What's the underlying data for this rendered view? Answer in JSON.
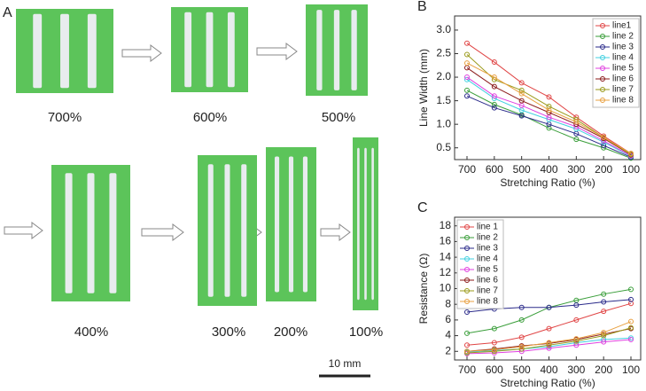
{
  "panel_label": "A",
  "photos": [
    {
      "label": "700%"
    },
    {
      "label": "600%"
    },
    {
      "label": "500%"
    },
    {
      "label": "400%"
    },
    {
      "label": "300%"
    },
    {
      "label": "200%"
    },
    {
      "label": "100%"
    }
  ],
  "scale_bar": "10 mm",
  "chart_data": [
    {
      "type": "line",
      "panel": "B",
      "xlabel": "Stretching Ratio (%)",
      "ylabel": "Line Width (mm)",
      "categories": [
        "700",
        "600",
        "500",
        "400",
        "300",
        "200",
        "100"
      ],
      "ylim": [
        0.25,
        3.3
      ],
      "yticks": [
        0.5,
        {
          "value": 1,
          "label": "1.0"
        },
        1.5,
        {
          "value": 2,
          "label": "2.0"
        },
        2.5,
        {
          "value": 3,
          "label": "3.0"
        }
      ],
      "legend": "upper right",
      "series": [
        {
          "name": "line1",
          "color": "#e04545",
          "values": [
            2.72,
            2.32,
            1.88,
            1.58,
            1.15,
            0.75,
            0.38
          ]
        },
        {
          "name": "line 2",
          "color": "#3a9e3a",
          "values": [
            1.72,
            1.42,
            1.2,
            0.92,
            0.68,
            0.5,
            0.28
          ]
        },
        {
          "name": "line 3",
          "color": "#2a2a8a",
          "values": [
            1.6,
            1.35,
            1.18,
            1.0,
            0.8,
            0.55,
            0.3
          ]
        },
        {
          "name": "line 4",
          "color": "#40d0e0",
          "values": [
            1.95,
            1.55,
            1.3,
            1.1,
            0.9,
            0.62,
            0.32
          ]
        },
        {
          "name": "line 5",
          "color": "#e040e0",
          "values": [
            2.0,
            1.6,
            1.4,
            1.15,
            0.95,
            0.65,
            0.33
          ]
        },
        {
          "name": "line 6",
          "color": "#8b1a1a",
          "values": [
            2.2,
            1.8,
            1.5,
            1.25,
            1.0,
            0.7,
            0.35
          ]
        },
        {
          "name": "line 7",
          "color": "#9a9a1a",
          "values": [
            2.48,
            1.95,
            1.72,
            1.38,
            1.1,
            0.72,
            0.36
          ]
        },
        {
          "name": "line 8",
          "color": "#e8a040",
          "values": [
            2.3,
            2.0,
            1.65,
            1.3,
            1.05,
            0.72,
            0.38
          ]
        }
      ]
    },
    {
      "type": "line",
      "panel": "C",
      "xlabel": "Stretching Ratio (%)",
      "ylabel": "Resistance (Ω)",
      "categories": [
        "700",
        "600",
        "500",
        "400",
        "300",
        "200",
        "100"
      ],
      "ylim": [
        0.9,
        19.1
      ],
      "yticks": [
        2,
        4,
        6,
        8,
        10,
        12,
        14,
        16,
        18
      ],
      "legend": "upper left",
      "series": [
        {
          "name": "line 1",
          "color": "#e04545",
          "values": [
            2.8,
            3.1,
            3.8,
            4.9,
            6.0,
            7.1,
            8.1
          ]
        },
        {
          "name": "line 2",
          "color": "#3a9e3a",
          "values": [
            4.3,
            4.9,
            6.0,
            7.6,
            8.5,
            9.3,
            9.9
          ]
        },
        {
          "name": "line 3",
          "color": "#2a2a8a",
          "values": [
            7.0,
            7.4,
            7.6,
            7.6,
            7.9,
            8.3,
            8.6
          ]
        },
        {
          "name": "line 4",
          "color": "#40d0e0",
          "values": [
            1.9,
            2.1,
            2.3,
            2.6,
            3.1,
            3.5,
            3.7
          ]
        },
        {
          "name": "line 5",
          "color": "#e040e0",
          "values": [
            1.7,
            1.8,
            2.0,
            2.4,
            2.8,
            3.2,
            3.5
          ]
        },
        {
          "name": "line 6",
          "color": "#8b1a1a",
          "values": [
            2.0,
            2.3,
            2.7,
            3.0,
            3.5,
            4.2,
            4.9
          ]
        },
        {
          "name": "line 7",
          "color": "#9a9a1a",
          "values": [
            1.8,
            2.0,
            2.3,
            2.8,
            3.3,
            4.0,
            5.0
          ]
        },
        {
          "name": "line 8",
          "color": "#e8a040",
          "values": [
            2.0,
            2.2,
            2.6,
            3.1,
            3.6,
            4.4,
            5.8
          ]
        }
      ]
    }
  ]
}
